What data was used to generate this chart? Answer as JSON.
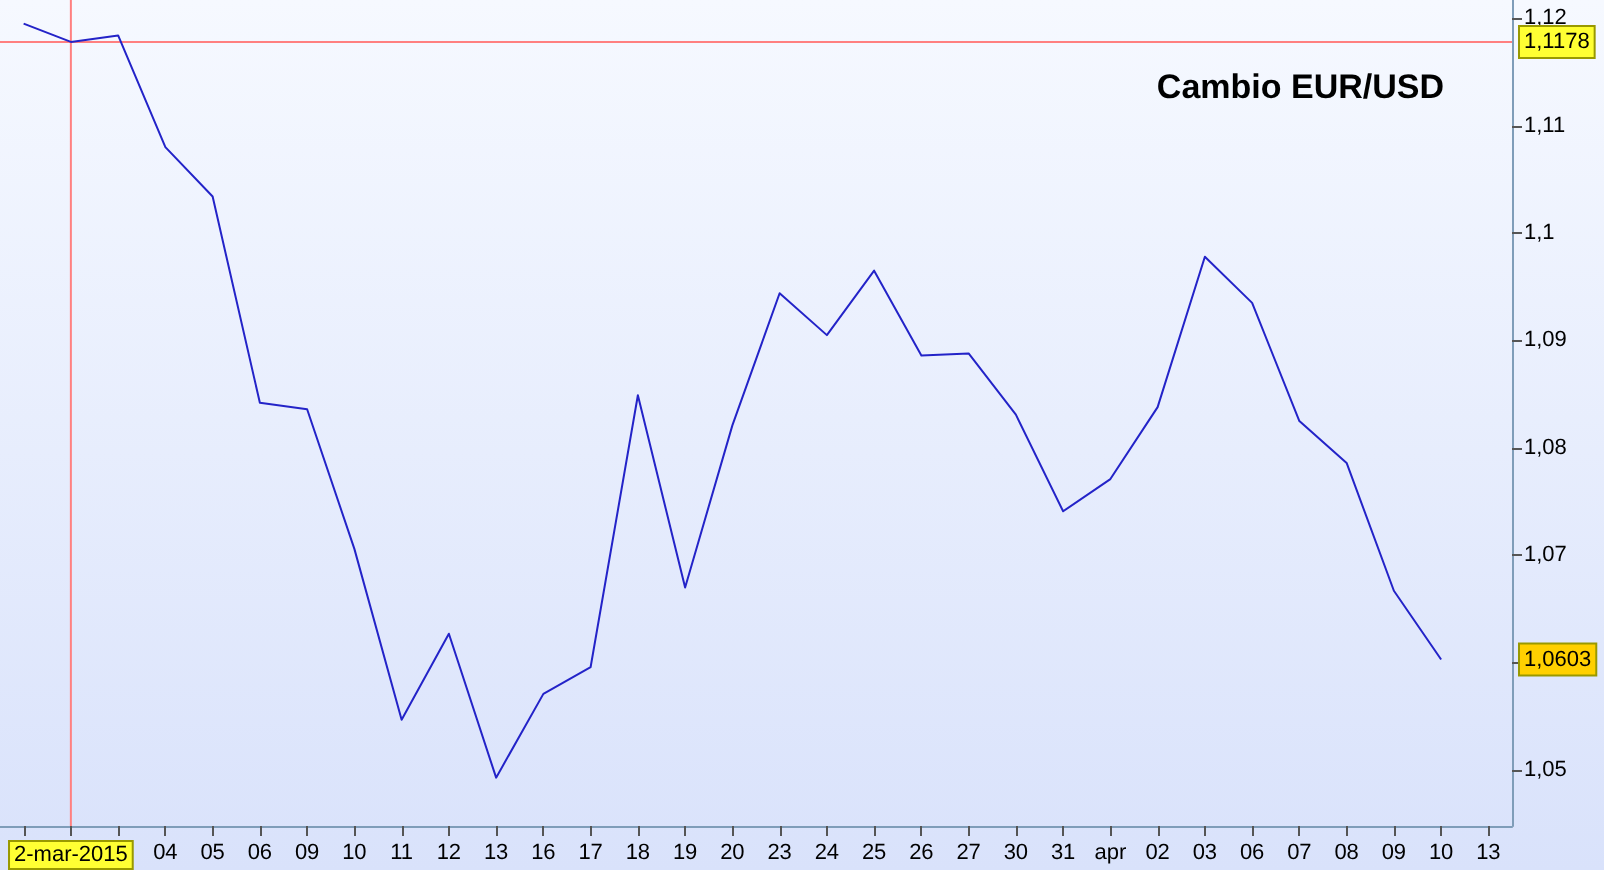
{
  "chart_data": {
    "type": "line",
    "title": "Cambio EUR/USD",
    "categories": [
      null,
      "2-mar-2015",
      null,
      "04",
      "05",
      "06",
      "09",
      "10",
      "11",
      "12",
      "13",
      "16",
      "17",
      "18",
      "19",
      "20",
      "23",
      "24",
      "25",
      "26",
      "27",
      "30",
      "31",
      "apr",
      "02",
      "03",
      "06",
      "07",
      "08",
      "09",
      "10",
      "13"
    ],
    "series": [
      {
        "color": "#2323c8",
        "values": [
          1.1195,
          1.1178,
          1.1184,
          1.108,
          1.1034,
          1.0842,
          1.0836,
          1.0706,
          1.0547,
          1.0627,
          1.0493,
          1.0571,
          1.0596,
          1.0849,
          1.067,
          1.0821,
          1.0944,
          1.0905,
          1.0965,
          1.0886,
          1.0888,
          1.0831,
          1.0741,
          1.0771,
          1.0838,
          1.0978,
          1.0935,
          1.0825,
          1.0786,
          1.0667,
          1.0603,
          null
        ]
      }
    ],
    "ylim": [
      1.0448,
      1.1217
    ],
    "yticks": [
      {
        "value": 1.05,
        "label": "1,05"
      },
      {
        "value": 1.06,
        "label": null
      },
      {
        "value": 1.07,
        "label": "1,07"
      },
      {
        "value": 1.08,
        "label": "1,08"
      },
      {
        "value": 1.09,
        "label": "1,09"
      },
      {
        "value": 1.1,
        "label": "1,1"
      },
      {
        "value": 1.11,
        "label": "1,11"
      },
      {
        "value": 1.12,
        "label": "1,12"
      }
    ],
    "ref_lines": [
      {
        "axis": "y",
        "value": 1.1178,
        "label": "1,1178",
        "color": "#ff8080"
      },
      {
        "axis": "x",
        "value": "2-mar-2015",
        "color": "#ff8080"
      }
    ],
    "annotations": [
      "1,0603"
    ],
    "marker": "none",
    "line_style": "solid"
  }
}
